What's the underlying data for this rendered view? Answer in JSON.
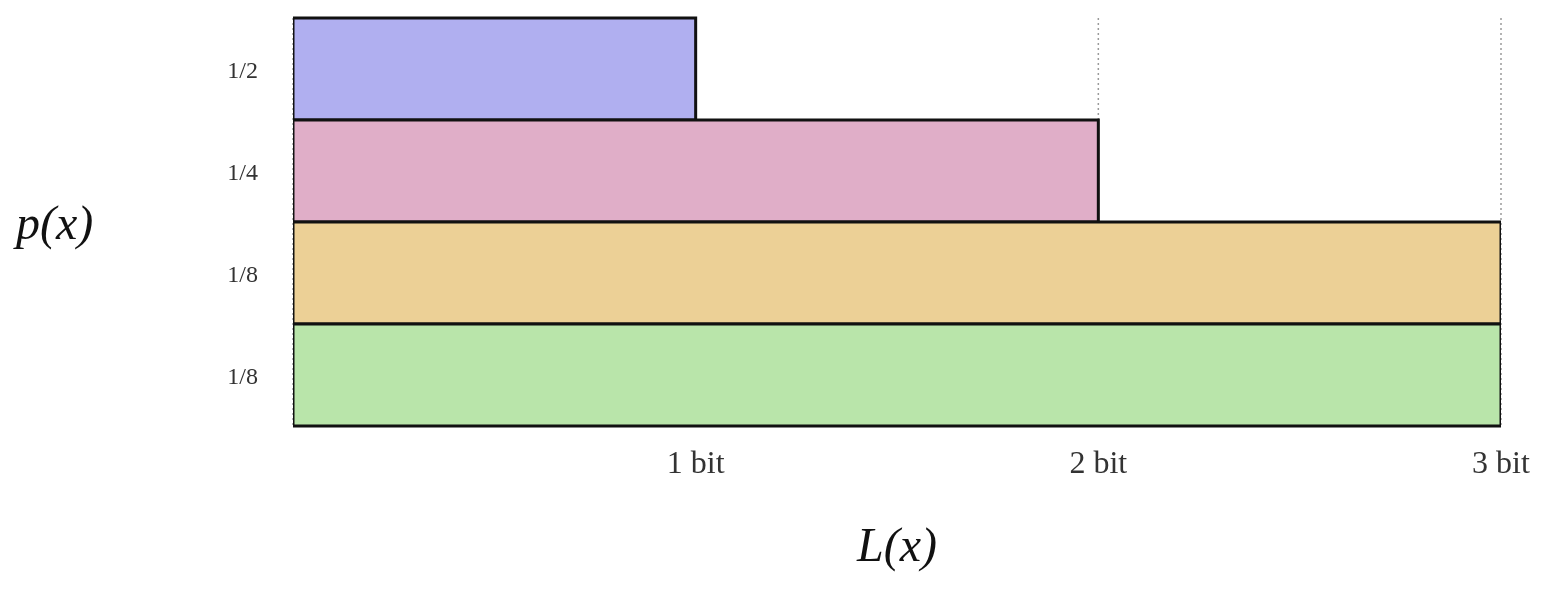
{
  "chart_data": {
    "type": "bar",
    "orientation": "horizontal",
    "xlabel": "L(x)",
    "ylabel": "p(x)",
    "categories": [
      "1/2",
      "1/4",
      "1/8",
      "1/8"
    ],
    "values": [
      1,
      2,
      3,
      3
    ],
    "colors": [
      "#b0aff0",
      "#e0aec8",
      "#ecd096",
      "#b9e5aa"
    ],
    "xlim": [
      0,
      3
    ],
    "xticks": [
      {
        "value": 1,
        "label": "1 bit"
      },
      {
        "value": 2,
        "label": "2 bit"
      },
      {
        "value": 3,
        "label": "3 bit"
      }
    ],
    "grid": "x"
  }
}
